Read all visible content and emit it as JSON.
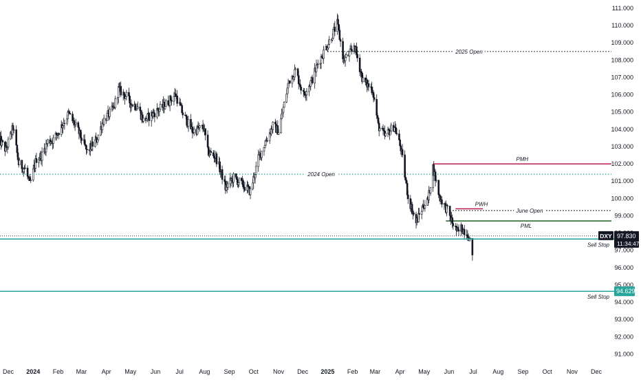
{
  "chart_data": {
    "type": "candlestick",
    "symbol": "DXY",
    "last_price": "97.830",
    "countdown": "11:34:47",
    "ylim": [
      91.0,
      111.0
    ],
    "y_ticks": [
      "91.000",
      "92.000",
      "93.000",
      "94.000",
      "95.000",
      "96.000",
      "97.000",
      "98.000",
      "99.000",
      "100.000",
      "101.000",
      "102.000",
      "103.000",
      "104.000",
      "105.000",
      "106.000",
      "107.000",
      "108.000",
      "109.000",
      "110.000",
      "111.000"
    ],
    "x_ticks": [
      {
        "label": "Dec",
        "date": "2023-12-01",
        "bold": false
      },
      {
        "label": "2024",
        "date": "2024-01-01",
        "bold": true
      },
      {
        "label": "Feb",
        "date": "2024-02-01",
        "bold": false
      },
      {
        "label": "Mar",
        "date": "2024-03-01",
        "bold": false
      },
      {
        "label": "Apr",
        "date": "2024-04-01",
        "bold": false
      },
      {
        "label": "May",
        "date": "2024-05-01",
        "bold": false
      },
      {
        "label": "Jun",
        "date": "2024-06-01",
        "bold": false
      },
      {
        "label": "Jul",
        "date": "2024-07-01",
        "bold": false
      },
      {
        "label": "Aug",
        "date": "2024-08-01",
        "bold": false
      },
      {
        "label": "Sep",
        "date": "2024-09-01",
        "bold": false
      },
      {
        "label": "Oct",
        "date": "2024-10-01",
        "bold": false
      },
      {
        "label": "Nov",
        "date": "2024-11-01",
        "bold": false
      },
      {
        "label": "Dec",
        "date": "2024-12-01",
        "bold": false
      },
      {
        "label": "2025",
        "date": "2025-01-01",
        "bold": true
      },
      {
        "label": "Feb",
        "date": "2025-02-01",
        "bold": false
      },
      {
        "label": "Mar",
        "date": "2025-03-01",
        "bold": false
      },
      {
        "label": "Apr",
        "date": "2025-04-01",
        "bold": false
      },
      {
        "label": "May",
        "date": "2025-05-01",
        "bold": false
      },
      {
        "label": "Jun",
        "date": "2025-06-01",
        "bold": false
      },
      {
        "label": "Jul",
        "date": "2025-07-01",
        "bold": false
      },
      {
        "label": "Aug",
        "date": "2025-08-01",
        "bold": false
      },
      {
        "label": "Sep",
        "date": "2025-09-01",
        "bold": false
      },
      {
        "label": "Oct",
        "date": "2025-10-01",
        "bold": false
      },
      {
        "label": "Nov",
        "date": "2025-11-01",
        "bold": false
      },
      {
        "label": "Dec",
        "date": "2025-12-01",
        "bold": false
      }
    ],
    "price_path": [
      [
        "2023-11-20",
        103.4
      ],
      [
        "2023-11-28",
        102.8
      ],
      [
        "2023-12-07",
        104.1
      ],
      [
        "2023-12-14",
        102.0
      ],
      [
        "2023-12-22",
        101.7
      ],
      [
        "2023-12-28",
        100.8
      ],
      [
        "2024-01-05",
        102.3
      ],
      [
        "2024-01-12",
        102.5
      ],
      [
        "2024-01-19",
        103.3
      ],
      [
        "2024-01-26",
        103.4
      ],
      [
        "2024-02-02",
        103.9
      ],
      [
        "2024-02-14",
        104.9
      ],
      [
        "2024-02-26",
        103.9
      ],
      [
        "2024-03-08",
        102.7
      ],
      [
        "2024-03-20",
        103.4
      ],
      [
        "2024-03-28",
        104.5
      ],
      [
        "2024-04-10",
        105.2
      ],
      [
        "2024-04-16",
        106.3
      ],
      [
        "2024-04-26",
        105.9
      ],
      [
        "2024-05-01",
        105.5
      ],
      [
        "2024-05-10",
        105.3
      ],
      [
        "2024-05-17",
        104.5
      ],
      [
        "2024-05-29",
        104.9
      ],
      [
        "2024-06-10",
        105.3
      ],
      [
        "2024-06-26",
        106.0
      ],
      [
        "2024-07-05",
        104.9
      ],
      [
        "2024-07-17",
        103.9
      ],
      [
        "2024-07-31",
        104.1
      ],
      [
        "2024-08-05",
        102.7
      ],
      [
        "2024-08-15",
        102.4
      ],
      [
        "2024-08-23",
        101.3
      ],
      [
        "2024-08-27",
        100.6
      ],
      [
        "2024-09-06",
        101.2
      ],
      [
        "2024-09-17",
        100.8
      ],
      [
        "2024-09-27",
        100.4
      ],
      [
        "2024-10-07",
        102.3
      ],
      [
        "2024-10-15",
        103.2
      ],
      [
        "2024-10-25",
        104.2
      ],
      [
        "2024-11-01",
        103.9
      ],
      [
        "2024-11-06",
        105.0
      ],
      [
        "2024-11-14",
        106.8
      ],
      [
        "2024-11-22",
        107.4
      ],
      [
        "2024-12-02",
        106.0
      ],
      [
        "2024-12-12",
        106.8
      ],
      [
        "2024-12-20",
        107.8
      ],
      [
        "2025-01-02",
        109.0
      ],
      [
        "2025-01-13",
        110.1
      ],
      [
        "2025-01-21",
        108.0
      ],
      [
        "2025-01-31",
        108.5
      ],
      [
        "2025-02-03",
        108.9
      ],
      [
        "2025-02-14",
        106.8
      ],
      [
        "2025-02-26",
        106.3
      ],
      [
        "2025-03-05",
        104.2
      ],
      [
        "2025-03-13",
        103.6
      ],
      [
        "2025-03-25",
        104.2
      ],
      [
        "2025-04-02",
        102.9
      ],
      [
        "2025-04-11",
        100.1
      ],
      [
        "2025-04-21",
        98.6
      ],
      [
        "2025-04-30",
        99.6
      ],
      [
        "2025-05-06",
        99.9
      ],
      [
        "2025-05-12",
        101.8
      ],
      [
        "2025-05-20",
        100.1
      ],
      [
        "2025-05-30",
        99.3
      ],
      [
        "2025-06-05",
        98.6
      ],
      [
        "2025-06-12",
        98.0
      ],
      [
        "2025-06-16",
        98.3
      ],
      [
        "2025-06-24",
        98.0
      ],
      [
        "2025-06-30",
        96.9
      ],
      [
        "2025-07-01",
        96.8
      ]
    ],
    "levels": [
      {
        "name": "2025 Open",
        "price": 108.5,
        "from": "2025-01-01",
        "to": "2025-12-31",
        "style": "dotted",
        "color": "#131722"
      },
      {
        "name": "2024 Open",
        "price": 101.4,
        "from": "2023-11-20",
        "to": "2025-12-31",
        "style": "dotted",
        "color": "#26a69a"
      },
      {
        "name": "PMH",
        "price": 102.0,
        "from": "2025-05-12",
        "to": "2025-12-31",
        "style": "solid",
        "color": "#b71c4f"
      },
      {
        "name": "PWH",
        "price": 99.4,
        "from": "2025-06-09",
        "to": "2025-07-13",
        "style": "solid",
        "color": "#b71c4f"
      },
      {
        "name": "June Open",
        "price": 99.3,
        "from": "2025-06-02",
        "to": "2025-12-31",
        "style": "dotted",
        "color": "#131722"
      },
      {
        "name": "PML",
        "price": 98.7,
        "from": "2025-05-28",
        "to": "2025-12-31",
        "style": "solid",
        "color": "#1b5e20"
      }
    ],
    "sell_stops": [
      {
        "label": "Sell Stop",
        "price": 97.65,
        "price_label": ""
      },
      {
        "label": "Sell Stop",
        "price": 94.629,
        "price_label": "94.629"
      }
    ],
    "colors": {
      "up": "#ffffff",
      "down": "#131722",
      "sell_stop": "#26a69a",
      "axis_text": "#131722",
      "price_tag_bg": "#131722"
    }
  }
}
